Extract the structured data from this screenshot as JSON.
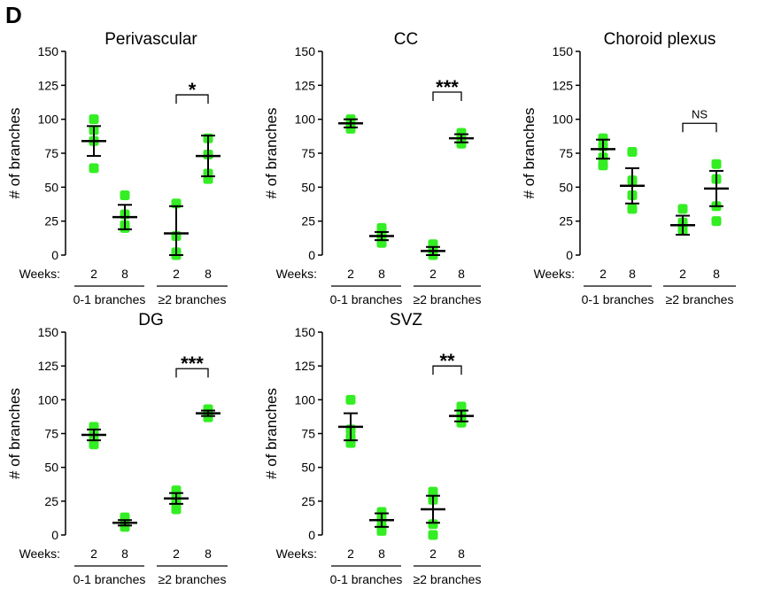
{
  "panel_label": "D",
  "chart_data": [
    {
      "type": "scatter",
      "title": "Perivascular",
      "ylabel": "# of branches",
      "ylim": [
        0,
        150
      ],
      "yticks": [
        0,
        25,
        50,
        75,
        100,
        125,
        150
      ],
      "x_row_label": "Weeks:",
      "categories": [
        "2",
        "8",
        "2",
        "8"
      ],
      "groups": [
        "0-1 branches",
        "≥2 branches"
      ],
      "points": [
        [
          100,
          92,
          84,
          64
        ],
        [
          44,
          30,
          22,
          20
        ],
        [
          38,
          14,
          2,
          0
        ],
        [
          86,
          74,
          60,
          56
        ]
      ],
      "mean": [
        84,
        28,
        16,
        73
      ],
      "err": [
        11,
        9,
        20,
        15
      ],
      "significance": "*"
    },
    {
      "type": "scatter",
      "title": "CC",
      "ylabel": "# of branches",
      "ylim": [
        0,
        150
      ],
      "yticks": [
        0,
        25,
        50,
        75,
        100,
        125,
        150
      ],
      "x_row_label": "Weeks:",
      "categories": [
        "2",
        "8",
        "2",
        "8"
      ],
      "groups": [
        "0-1 branches",
        "≥2 branches"
      ],
      "points": [
        [
          100,
          98,
          95,
          93
        ],
        [
          20,
          16,
          12,
          9
        ],
        [
          8,
          4,
          1,
          0
        ],
        [
          90,
          88,
          85,
          82
        ]
      ],
      "mean": [
        97,
        14,
        3,
        86
      ],
      "err": [
        3,
        3,
        3,
        3
      ],
      "significance": "***"
    },
    {
      "type": "scatter",
      "title": "Choroid plexus",
      "ylabel": "# of branches",
      "ylim": [
        0,
        150
      ],
      "yticks": [
        0,
        25,
        50,
        75,
        100,
        125,
        150
      ],
      "x_row_label": "Weeks:",
      "categories": [
        "2",
        "8",
        "2",
        "8"
      ],
      "groups": [
        "0-1 branches",
        "≥2 branches"
      ],
      "points": [
        [
          86,
          80,
          72,
          66
        ],
        [
          76,
          55,
          44,
          34
        ],
        [
          34,
          24,
          20,
          18
        ],
        [
          67,
          56,
          36,
          25
        ]
      ],
      "mean": [
        78,
        51,
        22,
        49
      ],
      "err": [
        7,
        13,
        7,
        13
      ],
      "significance": "NS"
    },
    {
      "type": "scatter",
      "title": "DG",
      "ylabel": "# of branches",
      "ylim": [
        0,
        150
      ],
      "yticks": [
        0,
        25,
        50,
        75,
        100,
        125,
        150
      ],
      "x_row_label": "Weeks:",
      "categories": [
        "2",
        "8",
        "2",
        "8"
      ],
      "groups": [
        "0-1 branches",
        "≥2 branches"
      ],
      "points": [
        [
          80,
          75,
          72,
          67
        ],
        [
          13,
          10,
          8,
          6
        ],
        [
          33,
          28,
          24,
          19
        ],
        [
          93,
          91,
          89,
          87
        ]
      ],
      "mean": [
        74,
        9,
        27,
        90
      ],
      "err": [
        4,
        2,
        4,
        2
      ],
      "significance": "***"
    },
    {
      "type": "scatter",
      "title": "SVZ",
      "ylabel": "# of branches",
      "ylim": [
        0,
        150
      ],
      "yticks": [
        0,
        25,
        50,
        75,
        100,
        125,
        150
      ],
      "x_row_label": "Weeks:",
      "categories": [
        "2",
        "8",
        "2",
        "8"
      ],
      "groups": [
        "0-1 branches",
        "≥2 branches"
      ],
      "points": [
        [
          100,
          78,
          72,
          68
        ],
        [
          17,
          12,
          6,
          3
        ],
        [
          32,
          26,
          8,
          0
        ],
        [
          95,
          89,
          87,
          83
        ]
      ],
      "mean": [
        80,
        11,
        19,
        88
      ],
      "err": [
        10,
        5,
        10,
        4
      ],
      "significance": "**"
    }
  ]
}
